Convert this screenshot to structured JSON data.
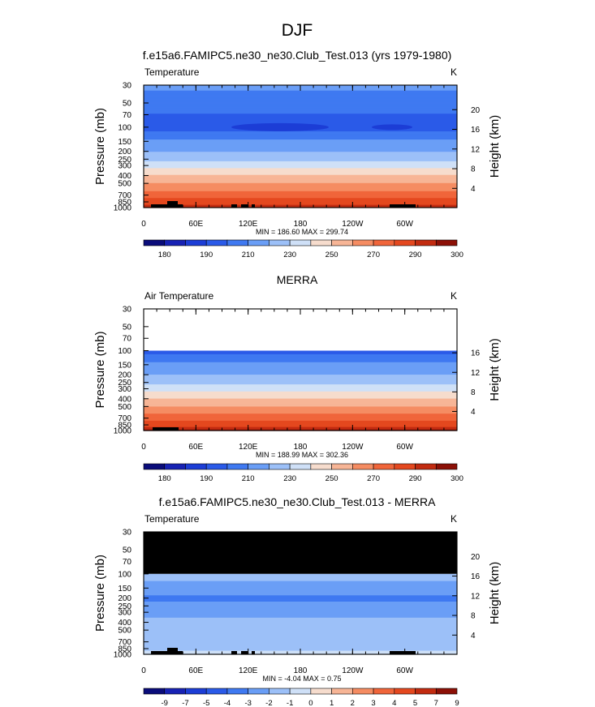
{
  "figure": {
    "title": "DJF"
  },
  "chart_data": [
    {
      "type": "heatmap",
      "title": "f.e15a6.FAMIPC5.ne30_ne30.Club_Test.013 (yrs 1979-1980)",
      "left_label": "Temperature",
      "units": "K",
      "xlabel": "",
      "ylabel": "Pressure (mb)",
      "right_ylabel": "Height (km)",
      "x_ticks": [
        "0",
        "60E",
        "120E",
        "180",
        "120W",
        "60W"
      ],
      "y_ticks": [
        "30",
        "50",
        "70",
        "100",
        "150",
        "200",
        "250",
        "300",
        "400",
        "500",
        "700",
        "850",
        "1000"
      ],
      "right_ticks": [
        "20",
        "16",
        "12",
        "8",
        "4"
      ],
      "stats": "MIN = 186.60  MAX = 299.74",
      "levels": [
        180,
        185,
        190,
        200,
        210,
        220,
        230,
        240,
        250,
        260,
        270,
        280,
        290,
        295,
        300
      ],
      "colorbar_labels": [
        "180",
        "190",
        "210",
        "230",
        "250",
        "270",
        "290",
        "300"
      ],
      "profile": [
        {
          "p": 30,
          "t": 212
        },
        {
          "p": 50,
          "t": 206
        },
        {
          "p": 70,
          "t": 199
        },
        {
          "p": 100,
          "t": 196
        },
        {
          "p": 150,
          "t": 212
        },
        {
          "p": 200,
          "t": 220
        },
        {
          "p": 250,
          "t": 227
        },
        {
          "p": 300,
          "t": 236
        },
        {
          "p": 400,
          "t": 250
        },
        {
          "p": 500,
          "t": 260
        },
        {
          "p": 700,
          "t": 275
        },
        {
          "p": 850,
          "t": 285
        },
        {
          "p": 1000,
          "t": 294
        }
      ]
    },
    {
      "type": "heatmap",
      "title": "MERRA",
      "left_label": "Air Temperature",
      "units": "K",
      "xlabel": "",
      "ylabel": "Pressure (mb)",
      "right_ylabel": "Height (km)",
      "x_ticks": [
        "0",
        "60E",
        "120E",
        "180",
        "120W",
        "60W"
      ],
      "y_ticks": [
        "30",
        "50",
        "70",
        "100",
        "150",
        "200",
        "250",
        "300",
        "400",
        "500",
        "700",
        "850",
        "1000"
      ],
      "right_ticks": [
        "16",
        "12",
        "8",
        "4"
      ],
      "stats": "MIN = 188.99  MAX = 302.36",
      "levels": [
        180,
        185,
        190,
        200,
        210,
        220,
        230,
        240,
        250,
        260,
        270,
        280,
        290,
        295,
        300
      ],
      "colorbar_labels": [
        "180",
        "190",
        "210",
        "230",
        "250",
        "270",
        "290",
        "300"
      ],
      "profile": [
        {
          "p": 100,
          "t": 196
        },
        {
          "p": 150,
          "t": 213
        },
        {
          "p": 200,
          "t": 220
        },
        {
          "p": 250,
          "t": 227
        },
        {
          "p": 300,
          "t": 236
        },
        {
          "p": 400,
          "t": 250
        },
        {
          "p": 500,
          "t": 260
        },
        {
          "p": 700,
          "t": 276
        },
        {
          "p": 850,
          "t": 287
        },
        {
          "p": 1000,
          "t": 296
        }
      ]
    },
    {
      "type": "heatmap",
      "title": "f.e15a6.FAMIPC5.ne30_ne30.Club_Test.013 - MERRA",
      "left_label": "Temperature",
      "units": "K",
      "xlabel": "",
      "ylabel": "Pressure (mb)",
      "right_ylabel": "Height (km)",
      "x_ticks": [
        "0",
        "60E",
        "120E",
        "180",
        "120W",
        "60W"
      ],
      "y_ticks": [
        "30",
        "50",
        "70",
        "100",
        "150",
        "200",
        "250",
        "300",
        "400",
        "500",
        "700",
        "850",
        "1000"
      ],
      "right_ticks": [
        "20",
        "16",
        "12",
        "8",
        "4"
      ],
      "stats": "MIN = -4.04  MAX =  0.75",
      "levels": [
        -9,
        -7,
        -5,
        -4,
        -3,
        -2,
        -1,
        0,
        1,
        2,
        3,
        4,
        5,
        7,
        9
      ],
      "colorbar_labels": [
        "-9",
        "-7",
        "-5",
        "-4",
        "-3",
        "-2",
        "-1",
        "0",
        "1",
        "2",
        "3",
        "4",
        "5",
        "7",
        "9"
      ],
      "profile": [
        {
          "p": 100,
          "t": -1.5
        },
        {
          "p": 150,
          "t": -2.5
        },
        {
          "p": 200,
          "t": -3.2
        },
        {
          "p": 250,
          "t": -2.8
        },
        {
          "p": 300,
          "t": -2.2
        },
        {
          "p": 400,
          "t": -1.8
        },
        {
          "p": 500,
          "t": -1.5
        },
        {
          "p": 700,
          "t": -1.5
        },
        {
          "p": 850,
          "t": -1.3
        },
        {
          "p": 1000,
          "t": -0.5
        }
      ]
    }
  ],
  "colorbar_colors": [
    "#0a0c7a",
    "#1722b4",
    "#1c3dd6",
    "#2a5ae8",
    "#3f79f1",
    "#6a9ef6",
    "#9cc0f8",
    "#cfe0f7",
    "#f6dccd",
    "#f7b596",
    "#f58c62",
    "#f0653a",
    "#e4481f",
    "#c22b10",
    "#8c1006"
  ]
}
